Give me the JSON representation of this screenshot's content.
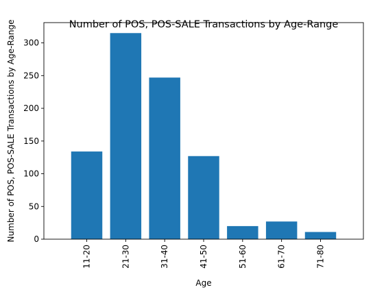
{
  "chart_data": {
    "type": "bar",
    "title": "Number of POS, POS-SALE Transactions by Age-Range",
    "xlabel": "Age",
    "ylabel": "Number of POS, POS-SALE Transactions by Age-Range",
    "categories": [
      "11-20",
      "21-30",
      "31-40",
      "41-50",
      "51-60",
      "61-70",
      "71-80"
    ],
    "values": [
      134,
      315,
      247,
      127,
      20,
      27,
      11
    ],
    "yticks": [
      "0",
      "50",
      "100",
      "150",
      "200",
      "250",
      "300"
    ],
    "ylim": [
      0,
      331
    ],
    "grid": false,
    "legend": "none",
    "bar_color": "#1f77b4"
  }
}
